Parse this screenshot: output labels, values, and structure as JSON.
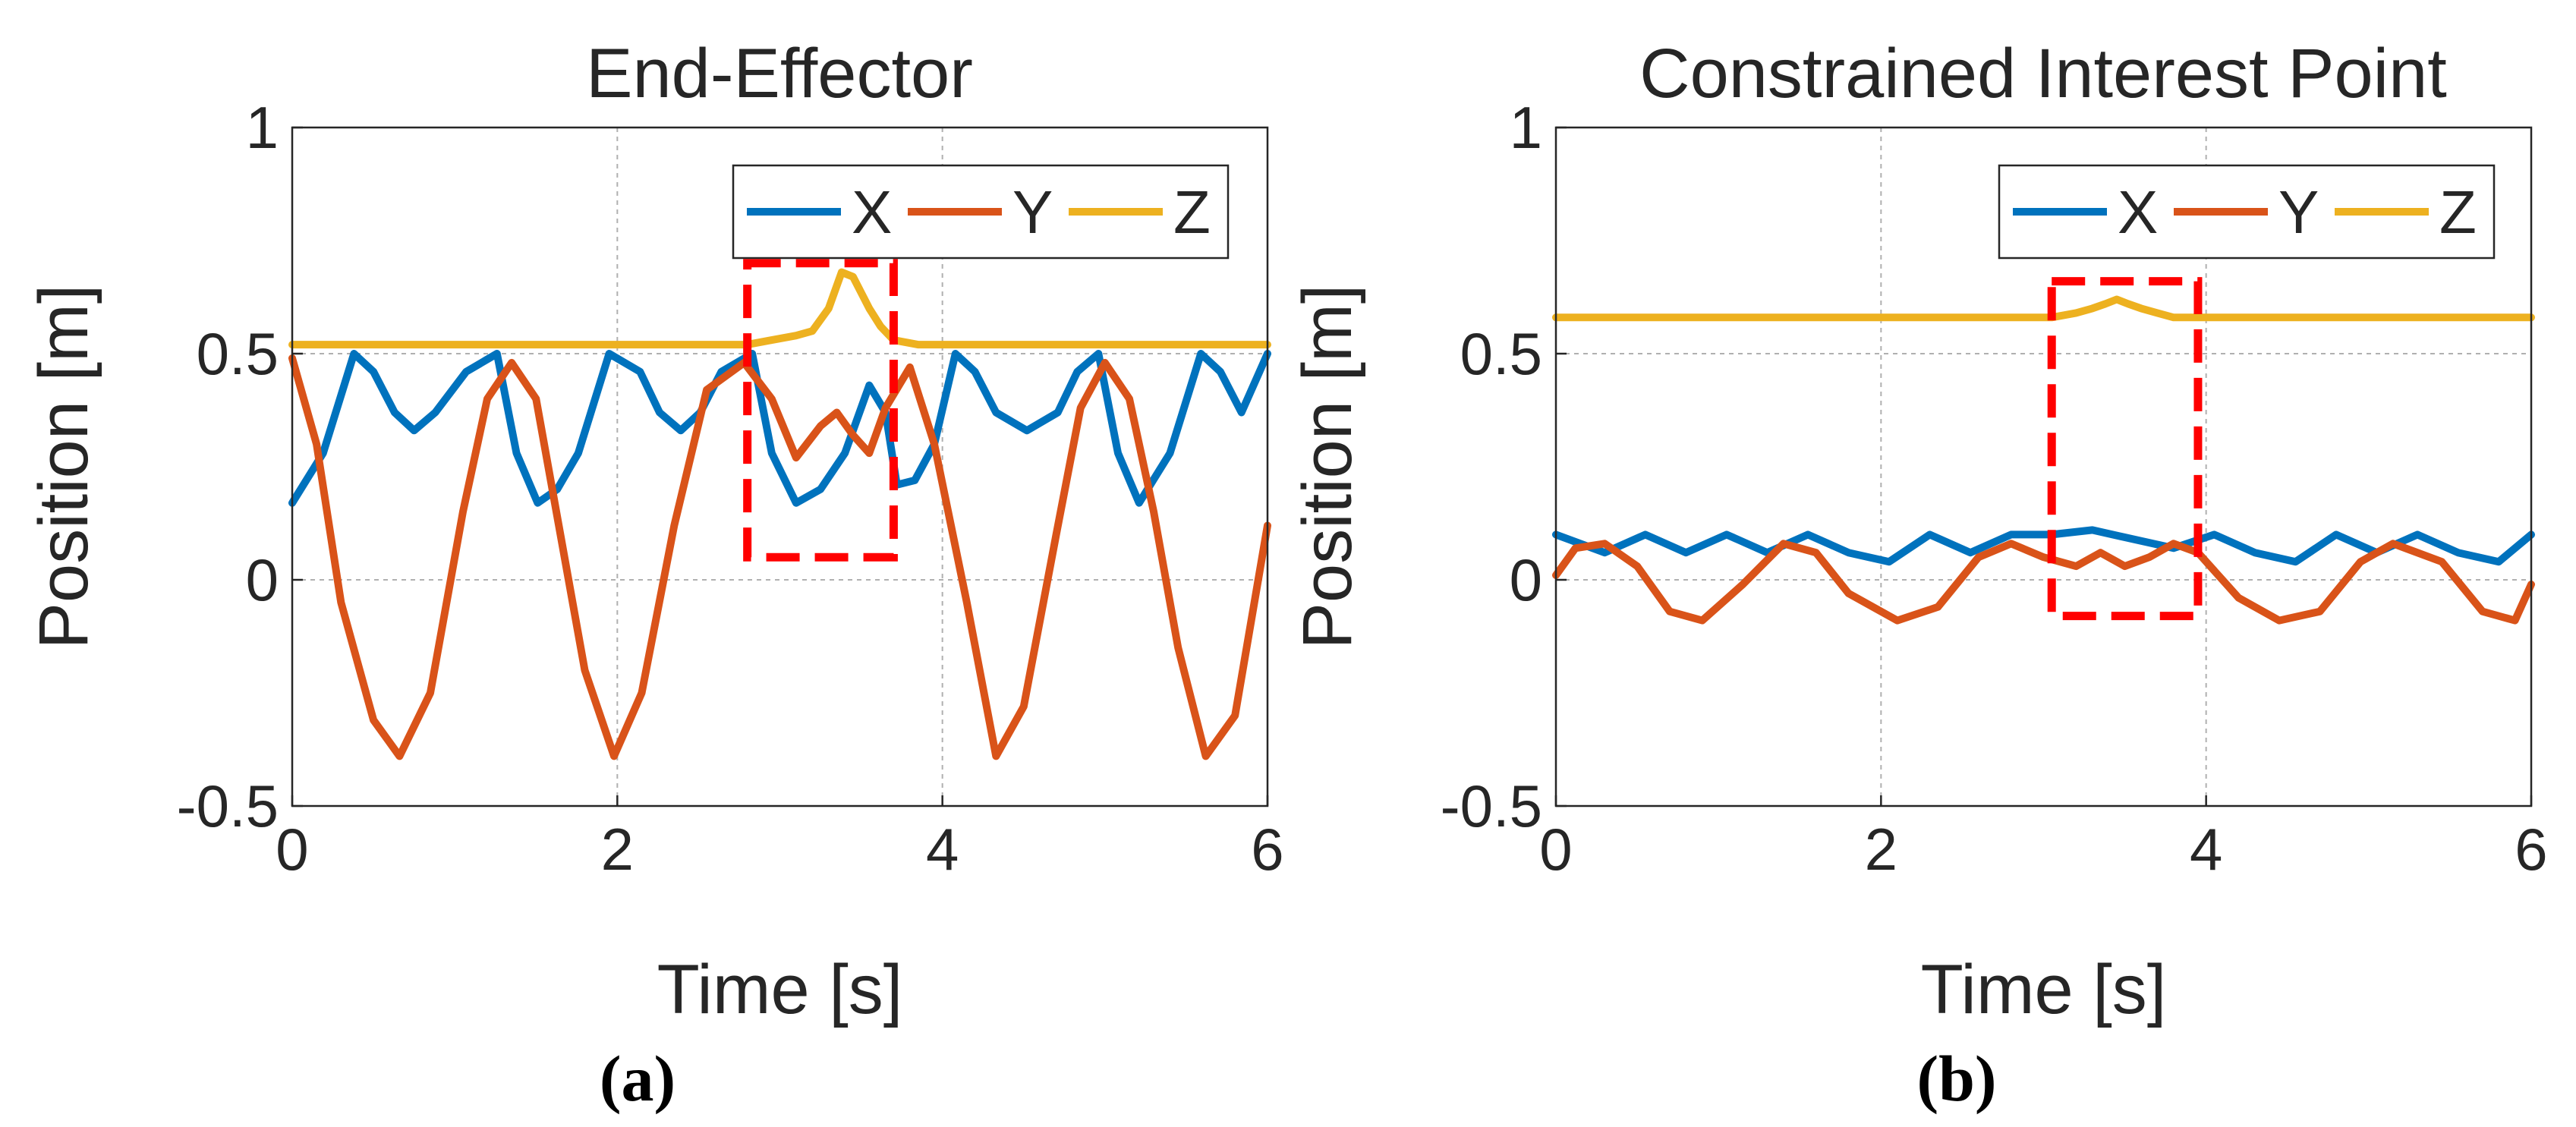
{
  "panels": [
    {
      "caption": "(a)"
    },
    {
      "caption": "(b)"
    }
  ],
  "colors": {
    "X": "#0072BD",
    "Y": "#D95319",
    "Z": "#EDB120",
    "highlight": "#FF0000"
  },
  "chart_data": [
    {
      "type": "line",
      "title": "End-Effector",
      "xlabel": "Time [s]",
      "ylabel": "Position [m]",
      "xlim": [
        0,
        6
      ],
      "ylim": [
        -0.5,
        1
      ],
      "xticks": [
        "0",
        "2",
        "4",
        "6"
      ],
      "yticks": [
        "-0.5",
        "0",
        "0.5",
        "1"
      ],
      "grid": true,
      "legend": {
        "position": "top-right",
        "orientation": "horizontal",
        "entries": [
          "X",
          "Y",
          "Z"
        ]
      },
      "highlight_box": {
        "x": [
          2.8,
          3.7
        ],
        "y": [
          0.05,
          0.7
        ]
      },
      "series": [
        {
          "name": "X",
          "color": "#0072BD",
          "t": [
            0,
            0.19,
            0.38,
            0.5,
            0.63,
            0.75,
            0.88,
            1.07,
            1.26,
            1.38,
            1.51,
            1.63,
            1.76,
            1.95,
            2.14,
            2.26,
            2.39,
            2.51,
            2.64,
            2.83,
            2.95,
            3.1,
            3.25,
            3.4,
            3.55,
            3.65,
            3.72,
            3.83,
            3.95,
            4.08,
            4.2,
            4.33,
            4.52,
            4.71,
            4.83,
            4.96,
            5.08,
            5.21,
            5.4,
            5.59,
            5.71,
            5.84,
            6
          ],
          "values": [
            0.17,
            0.28,
            0.5,
            0.46,
            0.37,
            0.33,
            0.37,
            0.46,
            0.5,
            0.28,
            0.17,
            0.2,
            0.28,
            0.5,
            0.46,
            0.37,
            0.33,
            0.37,
            0.46,
            0.5,
            0.28,
            0.17,
            0.2,
            0.28,
            0.43,
            0.37,
            0.21,
            0.22,
            0.3,
            0.5,
            0.46,
            0.37,
            0.33,
            0.37,
            0.46,
            0.5,
            0.28,
            0.17,
            0.28,
            0.5,
            0.46,
            0.37,
            0.5
          ]
        },
        {
          "name": "Y",
          "color": "#D95319",
          "t": [
            0,
            0.15,
            0.3,
            0.5,
            0.66,
            0.85,
            1.05,
            1.2,
            1.35,
            1.5,
            1.65,
            1.8,
            1.98,
            2.15,
            2.35,
            2.55,
            2.78,
            2.95,
            3.1,
            3.25,
            3.35,
            3.45,
            3.55,
            3.65,
            3.8,
            3.95,
            4.15,
            4.33,
            4.5,
            4.7,
            4.85,
            5.0,
            5.15,
            5.3,
            5.45,
            5.62,
            5.8,
            6
          ],
          "values": [
            0.49,
            0.3,
            -0.05,
            -0.31,
            -0.39,
            -0.25,
            0.15,
            0.4,
            0.48,
            0.4,
            0.1,
            -0.2,
            -0.39,
            -0.25,
            0.12,
            0.42,
            0.48,
            0.4,
            0.27,
            0.34,
            0.37,
            0.32,
            0.28,
            0.38,
            0.47,
            0.3,
            -0.05,
            -0.39,
            -0.28,
            0.1,
            0.38,
            0.48,
            0.4,
            0.15,
            -0.15,
            -0.39,
            -0.3,
            0.12
          ]
        },
        {
          "name": "Z",
          "color": "#EDB120",
          "t": [
            0,
            2.8,
            2.95,
            3.1,
            3.2,
            3.3,
            3.38,
            3.45,
            3.55,
            3.62,
            3.7,
            3.85,
            4.0,
            4.5,
            6
          ],
          "values": [
            0.52,
            0.52,
            0.53,
            0.54,
            0.55,
            0.6,
            0.68,
            0.67,
            0.6,
            0.56,
            0.53,
            0.52,
            0.52,
            0.52,
            0.52
          ]
        }
      ]
    },
    {
      "type": "line",
      "title": "Constrained Interest Point",
      "xlabel": "Time [s]",
      "ylabel": "Position [m]",
      "xlim": [
        0,
        6
      ],
      "ylim": [
        -0.5,
        1
      ],
      "xticks": [
        "0",
        "2",
        "4",
        "6"
      ],
      "yticks": [
        "-0.5",
        "0",
        "0.5",
        "1"
      ],
      "grid": true,
      "legend": {
        "position": "top-right",
        "orientation": "horizontal",
        "entries": [
          "X",
          "Y",
          "Z"
        ]
      },
      "highlight_box": {
        "x": [
          3.05,
          3.95
        ],
        "y": [
          -0.08,
          0.66
        ]
      },
      "series": [
        {
          "name": "X",
          "color": "#0072BD",
          "t": [
            0,
            0.3,
            0.55,
            0.8,
            1.05,
            1.3,
            1.55,
            1.8,
            2.05,
            2.3,
            2.55,
            2.8,
            3.05,
            3.3,
            3.55,
            3.8,
            4.05,
            4.3,
            4.55,
            4.8,
            5.05,
            5.3,
            5.55,
            5.8,
            6
          ],
          "values": [
            0.1,
            0.06,
            0.1,
            0.06,
            0.1,
            0.06,
            0.1,
            0.06,
            0.04,
            0.1,
            0.06,
            0.1,
            0.1,
            0.11,
            0.09,
            0.07,
            0.1,
            0.06,
            0.04,
            0.1,
            0.06,
            0.1,
            0.06,
            0.04,
            0.1
          ]
        },
        {
          "name": "Y",
          "color": "#D95319",
          "t": [
            0,
            0.12,
            0.3,
            0.5,
            0.7,
            0.9,
            1.15,
            1.4,
            1.6,
            1.8,
            2.1,
            2.35,
            2.6,
            2.8,
            3.0,
            3.2,
            3.35,
            3.5,
            3.65,
            3.8,
            3.95,
            4.2,
            4.45,
            4.7,
            4.95,
            5.15,
            5.45,
            5.7,
            5.9,
            6
          ],
          "values": [
            0.01,
            0.07,
            0.08,
            0.03,
            -0.07,
            -0.09,
            -0.01,
            0.08,
            0.06,
            -0.03,
            -0.09,
            -0.06,
            0.05,
            0.08,
            0.05,
            0.03,
            0.06,
            0.03,
            0.05,
            0.08,
            0.06,
            -0.04,
            -0.09,
            -0.07,
            0.04,
            0.08,
            0.04,
            -0.07,
            -0.09,
            -0.01
          ]
        },
        {
          "name": "Z",
          "color": "#EDB120",
          "t": [
            0,
            3.05,
            3.2,
            3.3,
            3.38,
            3.45,
            3.52,
            3.6,
            3.7,
            3.8,
            4.0,
            6
          ],
          "values": [
            0.58,
            0.58,
            0.59,
            0.6,
            0.61,
            0.62,
            0.61,
            0.6,
            0.59,
            0.58,
            0.58,
            0.58
          ]
        }
      ]
    }
  ]
}
